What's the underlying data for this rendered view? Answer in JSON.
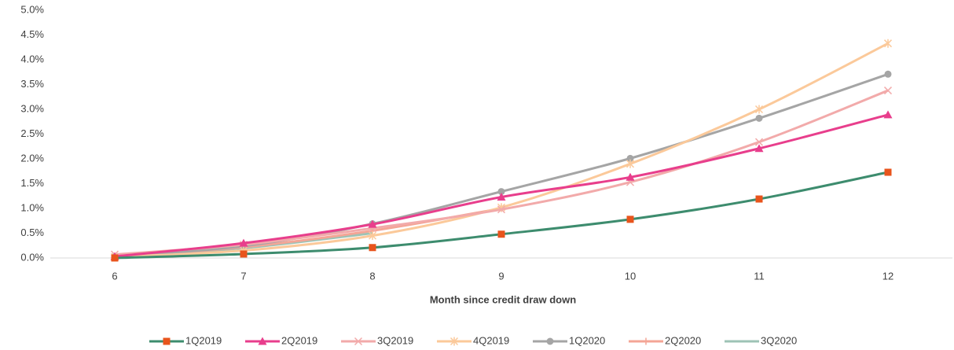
{
  "chart_data": {
    "type": "line",
    "x_label": "Month since credit draw down",
    "x": [
      6,
      7,
      8,
      9,
      10,
      11,
      12
    ],
    "xlim": [
      5.5,
      12.5
    ],
    "xticks": [
      6,
      7,
      8,
      9,
      10,
      11,
      12
    ],
    "ylim": [
      0,
      5
    ],
    "yticks": [
      {
        "value": 0,
        "label": "0.0%"
      },
      {
        "value": 0.5,
        "label": "0.5%"
      },
      {
        "value": 1,
        "label": "1.0%"
      },
      {
        "value": 1.5,
        "label": "1.5%"
      },
      {
        "value": 2,
        "label": "2.0%"
      },
      {
        "value": 2.5,
        "label": "2.5%"
      },
      {
        "value": 3,
        "label": "3.0%"
      },
      {
        "value": 3.5,
        "label": "3.5%"
      },
      {
        "value": 4,
        "label": "4.0%"
      },
      {
        "value": 4.5,
        "label": "4.5%"
      },
      {
        "value": 5,
        "label": "5.0%"
      }
    ],
    "legend": "bottom",
    "series": [
      {
        "name": "1Q2019",
        "color": "#3d8c6e",
        "marker": "square",
        "marker_color": "#e8541c",
        "values": [
          0.0,
          0.08,
          0.21,
          0.48,
          0.78,
          1.19,
          1.73
        ]
      },
      {
        "name": "2Q2019",
        "color": "#e83e8c",
        "marker": "triangle",
        "marker_color": "#e83e8c",
        "values": [
          0.03,
          0.3,
          0.68,
          1.23,
          1.63,
          2.21,
          2.89
        ]
      },
      {
        "name": "3Q2019",
        "color": "#f2aaaa",
        "marker": "x",
        "marker_color": "#f2aaaa",
        "values": [
          0.07,
          0.27,
          0.6,
          0.98,
          1.53,
          2.34,
          3.38
        ]
      },
      {
        "name": "4Q2019",
        "color": "#fbc99a",
        "marker": "star",
        "marker_color": "#fbc99a",
        "values": [
          0.02,
          0.15,
          0.45,
          1.02,
          1.9,
          3.0,
          4.33
        ]
      },
      {
        "name": "1Q2020",
        "color": "#a5a5a5",
        "marker": "circle",
        "marker_color": "#a5a5a5",
        "values": [
          0.03,
          0.24,
          0.69,
          1.34,
          2.01,
          2.82,
          3.71
        ]
      },
      {
        "name": "2Q2020",
        "color": "#f4a596",
        "marker": "plus",
        "marker_color": "#f4a596",
        "values": [
          0.02,
          0.22,
          0.55,
          1.0,
          null,
          null,
          null
        ]
      },
      {
        "name": "3Q2020",
        "color": "#9dc3b5",
        "marker": "none",
        "marker_color": "#9dc3b5",
        "values": [
          0.01,
          0.2,
          0.5,
          null,
          null,
          null,
          null
        ]
      }
    ]
  }
}
